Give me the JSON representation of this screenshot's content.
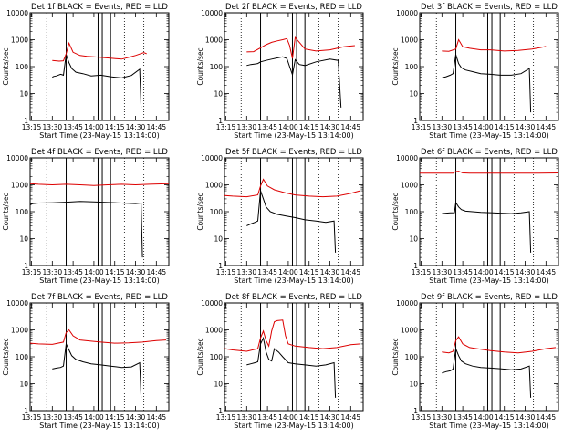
{
  "figure": {
    "xlabel": "Start Time (23-May-15 13:14:00)",
    "ylabel": "Counts/sec",
    "x_tick_labels": [
      "13:15",
      "13:30",
      "13:45",
      "14:00",
      "14:15",
      "14:30",
      "14:45"
    ],
    "colors": {
      "events": "#000000",
      "lld": "#dd0000",
      "frame": "#000000"
    }
  },
  "chart_data": [
    {
      "type": "line",
      "panel": 1,
      "title": "Det 1f BLACK = Events, RED = LLD",
      "xlabel": "Start Time (23-May-15 13:14:00)",
      "ylabel": "Counts/sec",
      "xlim": [
        "13:14",
        "14:54"
      ],
      "ylim": [
        1,
        10000
      ],
      "yscale": "log",
      "y_tick_labels": [
        "1",
        "10",
        "100",
        "1000",
        "10000"
      ],
      "vertical_lines_solid": [
        "13:40",
        "14:03",
        "14:06",
        "14:12"
      ],
      "vertical_lines_dotted": [
        "13:26",
        "14:22",
        "14:36"
      ],
      "series": [
        {
          "name": "Events",
          "x": [
            "13:30",
            "13:31",
            "13:33",
            "13:36",
            "13:37",
            "13:38",
            "13:40",
            "13:42",
            "13:44",
            "13:47",
            "13:52",
            "13:58",
            "14:05",
            "14:12",
            "14:20",
            "14:27",
            "14:33",
            "14:34"
          ],
          "y": [
            40,
            43,
            45,
            52,
            50,
            48,
            280,
            140,
            85,
            62,
            55,
            45,
            48,
            42,
            38,
            47,
            80,
            3
          ]
        },
        {
          "name": "LLD",
          "x": [
            "13:30",
            "13:35",
            "13:38",
            "13:40",
            "13:42",
            "13:45",
            "13:50",
            "13:55",
            "14:00",
            "14:10",
            "14:20",
            "14:25",
            "14:30",
            "14:36",
            "14:38"
          ],
          "y": [
            170,
            160,
            165,
            300,
            750,
            340,
            260,
            240,
            230,
            210,
            190,
            220,
            260,
            330,
            300
          ]
        }
      ]
    },
    {
      "type": "line",
      "panel": 2,
      "title": "Det 2f BLACK = Events, RED = LLD",
      "xlabel": "Start Time (23-May-15 13:14:00)",
      "ylabel": "Counts/sec",
      "xlim": [
        "13:14",
        "14:54"
      ],
      "ylim": [
        1,
        10000
      ],
      "yscale": "log",
      "y_tick_labels": [
        "1",
        "10",
        "100",
        "1000",
        "10000"
      ],
      "vertical_lines_solid": [
        "13:40",
        "14:03",
        "14:06",
        "14:12"
      ],
      "vertical_lines_dotted": [
        "13:26",
        "14:22",
        "14:36"
      ],
      "series": [
        {
          "name": "Events",
          "x": [
            "13:30",
            "13:33",
            "13:36",
            "13:38",
            "13:40",
            "13:44",
            "13:48",
            "13:52",
            "13:56",
            "13:59",
            "14:01",
            "14:03",
            "14:05",
            "14:08",
            "14:12",
            "14:20",
            "14:30",
            "14:36",
            "14:38"
          ],
          "y": [
            110,
            120,
            125,
            130,
            150,
            170,
            190,
            210,
            230,
            200,
            100,
            50,
            180,
            120,
            110,
            150,
            190,
            170,
            3
          ]
        },
        {
          "name": "LLD",
          "x": [
            "13:30",
            "13:35",
            "13:40",
            "13:44",
            "13:48",
            "13:52",
            "13:56",
            "13:59",
            "14:01",
            "14:03",
            "14:05",
            "14:08",
            "14:12",
            "14:20",
            "14:30",
            "14:40",
            "14:48"
          ],
          "y": [
            350,
            360,
            500,
            650,
            800,
            900,
            1000,
            1100,
            600,
            200,
            1200,
            800,
            450,
            380,
            420,
            550,
            600
          ]
        }
      ]
    },
    {
      "type": "line",
      "panel": 3,
      "title": "Det 3f BLACK = Events, RED = LLD",
      "xlabel": "Start Time (23-May-15 13:14:00)",
      "ylabel": "Counts/sec",
      "xlim": [
        "13:14",
        "14:54"
      ],
      "ylim": [
        1,
        10000
      ],
      "yscale": "log",
      "y_tick_labels": [
        "1",
        "10",
        "100",
        "1000",
        "10000"
      ],
      "vertical_lines_solid": [
        "13:40",
        "14:03",
        "14:06",
        "14:12"
      ],
      "vertical_lines_dotted": [
        "13:26",
        "14:22",
        "14:36"
      ],
      "series": [
        {
          "name": "Events",
          "x": [
            "13:30",
            "13:33",
            "13:36",
            "13:38",
            "13:40",
            "13:42",
            "13:44",
            "13:47",
            "13:52",
            "13:58",
            "14:05",
            "14:12",
            "14:20",
            "14:27",
            "14:33",
            "14:34"
          ],
          "y": [
            38,
            42,
            48,
            55,
            280,
            130,
            90,
            75,
            65,
            55,
            52,
            48,
            48,
            55,
            85,
            2
          ]
        },
        {
          "name": "LLD",
          "x": [
            "13:30",
            "13:35",
            "13:40",
            "13:42",
            "13:45",
            "13:50",
            "13:58",
            "14:05",
            "14:15",
            "14:25",
            "14:35",
            "14:40",
            "14:45"
          ],
          "y": [
            380,
            370,
            450,
            1000,
            550,
            480,
            420,
            420,
            380,
            400,
            450,
            500,
            560
          ]
        }
      ]
    },
    {
      "type": "line",
      "panel": 4,
      "title": "Det 4f BLACK = Events, RED = LLD",
      "xlabel": "Start Time (23-May-15 13:14:00)",
      "ylabel": "Counts/sec",
      "xlim": [
        "13:14",
        "14:54"
      ],
      "ylim": [
        1,
        10000
      ],
      "yscale": "log",
      "y_tick_labels": [
        "1",
        "10",
        "100",
        "1000",
        "10000"
      ],
      "vertical_lines_solid": [
        "13:40",
        "14:03",
        "14:06",
        "14:12"
      ],
      "vertical_lines_dotted": [
        "13:26",
        "14:22",
        "14:36"
      ],
      "series": [
        {
          "name": "Events",
          "x": [
            "13:14",
            "13:16",
            "13:20",
            "13:30",
            "13:40",
            "13:50",
            "14:00",
            "14:10",
            "14:20",
            "14:30",
            "14:34",
            "14:35"
          ],
          "y": [
            180,
            200,
            210,
            215,
            225,
            240,
            230,
            220,
            210,
            200,
            210,
            2
          ]
        },
        {
          "name": "LLD",
          "x": [
            "13:14",
            "13:20",
            "13:30",
            "13:40",
            "13:50",
            "14:00",
            "14:10",
            "14:20",
            "14:30",
            "14:40",
            "14:54"
          ],
          "y": [
            1100,
            1050,
            1000,
            1050,
            1000,
            950,
            1000,
            1050,
            1000,
            1050,
            1100
          ]
        }
      ]
    },
    {
      "type": "line",
      "panel": 5,
      "title": "Det 5f BLACK = Events, RED = LLD",
      "xlabel": "Start Time (23-May-15 13:14:00)",
      "ylabel": "Counts/sec",
      "xlim": [
        "13:14",
        "14:54"
      ],
      "ylim": [
        1,
        10000
      ],
      "yscale": "log",
      "y_tick_labels": [
        "1",
        "10",
        "100",
        "1000",
        "10000"
      ],
      "vertical_lines_solid": [
        "13:40",
        "14:03",
        "14:06",
        "14:12"
      ],
      "vertical_lines_dotted": [
        "13:26",
        "14:22",
        "14:36"
      ],
      "series": [
        {
          "name": "Events",
          "x": [
            "13:30",
            "13:33",
            "13:36",
            "13:38",
            "13:40",
            "13:42",
            "13:44",
            "13:47",
            "13:52",
            "13:58",
            "14:05",
            "14:12",
            "14:20",
            "14:27",
            "14:33",
            "14:34"
          ],
          "y": [
            30,
            35,
            40,
            45,
            600,
            300,
            150,
            100,
            80,
            70,
            60,
            50,
            45,
            40,
            45,
            3
          ]
        },
        {
          "name": "LLD",
          "x": [
            "13:14",
            "13:20",
            "13:30",
            "13:38",
            "13:40",
            "13:42",
            "13:45",
            "13:50",
            "13:58",
            "14:05",
            "14:15",
            "14:25",
            "14:35",
            "14:45",
            "14:52"
          ],
          "y": [
            400,
            380,
            360,
            420,
            900,
            1600,
            900,
            650,
            500,
            420,
            380,
            360,
            380,
            480,
            600
          ]
        }
      ]
    },
    {
      "type": "line",
      "panel": 6,
      "title": "Det 6f BLACK = Events, RED = LLD",
      "xlabel": "Start Time (23-May-15 13:14:00)",
      "ylabel": "Counts/sec",
      "xlim": [
        "13:14",
        "14:54"
      ],
      "ylim": [
        1,
        10000
      ],
      "yscale": "log",
      "y_tick_labels": [
        "1",
        "10",
        "100",
        "1000",
        "10000"
      ],
      "vertical_lines_solid": [
        "13:40",
        "14:03",
        "14:06",
        "14:12"
      ],
      "vertical_lines_dotted": [
        "13:26",
        "14:22",
        "14:36"
      ],
      "series": [
        {
          "name": "Events",
          "x": [
            "13:30",
            "13:33",
            "13:36",
            "13:39",
            "13:40",
            "13:42",
            "13:44",
            "13:47",
            "13:52",
            "13:58",
            "14:05",
            "14:12",
            "14:20",
            "14:27",
            "14:33",
            "14:34"
          ],
          "y": [
            85,
            88,
            90,
            92,
            220,
            150,
            120,
            105,
            100,
            95,
            92,
            88,
            85,
            90,
            100,
            3
          ]
        },
        {
          "name": "LLD",
          "x": [
            "13:14",
            "13:30",
            "13:38",
            "13:40",
            "13:42",
            "13:45",
            "13:50",
            "14:00",
            "14:20",
            "14:40",
            "14:54"
          ],
          "y": [
            2700,
            2700,
            2700,
            3100,
            3200,
            2750,
            2700,
            2700,
            2700,
            2700,
            2750
          ]
        }
      ]
    },
    {
      "type": "line",
      "panel": 7,
      "title": "Det 7f BLACK = Events, RED = LLD",
      "xlabel": "Start Time (23-May-15 13:14:00)",
      "ylabel": "Counts/sec",
      "xlim": [
        "13:14",
        "14:54"
      ],
      "ylim": [
        1,
        10000
      ],
      "yscale": "log",
      "y_tick_labels": [
        "1",
        "10",
        "100",
        "1000",
        "10000"
      ],
      "vertical_lines_solid": [
        "13:40",
        "14:03",
        "14:06",
        "14:12"
      ],
      "vertical_lines_dotted": [
        "13:26",
        "14:22",
        "14:36"
      ],
      "series": [
        {
          "name": "Events",
          "x": [
            "13:30",
            "13:33",
            "13:36",
            "13:38",
            "13:40",
            "13:42",
            "13:44",
            "13:47",
            "13:52",
            "13:58",
            "14:05",
            "14:12",
            "14:20",
            "14:27",
            "14:33",
            "14:34"
          ],
          "y": [
            35,
            38,
            40,
            45,
            300,
            180,
            110,
            80,
            65,
            55,
            50,
            45,
            40,
            42,
            60,
            3
          ]
        },
        {
          "name": "LLD",
          "x": [
            "13:14",
            "13:20",
            "13:30",
            "13:38",
            "13:40",
            "13:42",
            "13:45",
            "13:50",
            "13:58",
            "14:05",
            "14:15",
            "14:25",
            "14:35",
            "14:45",
            "14:52"
          ],
          "y": [
            320,
            300,
            290,
            350,
            800,
            1000,
            600,
            420,
            380,
            350,
            320,
            330,
            350,
            400,
            420
          ]
        }
      ]
    },
    {
      "type": "line",
      "panel": 8,
      "title": "Det 8f BLACK = Events, RED = LLD",
      "xlabel": "Start Time (23-May-15 13:14:00)",
      "ylabel": "Counts/sec",
      "xlim": [
        "13:14",
        "14:54"
      ],
      "ylim": [
        1,
        10000
      ],
      "yscale": "log",
      "y_tick_labels": [
        "1",
        "10",
        "100",
        "1000",
        "10000"
      ],
      "vertical_lines_solid": [
        "13:40",
        "14:03",
        "14:06",
        "14:12"
      ],
      "vertical_lines_dotted": [
        "13:26",
        "14:22",
        "14:36"
      ],
      "series": [
        {
          "name": "Events",
          "x": [
            "13:30",
            "13:33",
            "13:36",
            "13:38",
            "13:40",
            "13:42",
            "13:44",
            "13:46",
            "13:48",
            "13:50",
            "13:53",
            "13:56",
            "14:00",
            "14:05",
            "14:12",
            "14:20",
            "14:27",
            "14:33",
            "14:34"
          ],
          "y": [
            50,
            55,
            60,
            65,
            300,
            500,
            150,
            80,
            70,
            200,
            150,
            100,
            60,
            55,
            50,
            45,
            50,
            60,
            3
          ]
        },
        {
          "name": "LLD",
          "x": [
            "13:14",
            "13:20",
            "13:30",
            "13:38",
            "13:40",
            "13:42",
            "13:44",
            "13:46",
            "13:48",
            "13:50",
            "13:52",
            "13:56",
            "13:58",
            "14:00",
            "14:05",
            "14:15",
            "14:25",
            "14:35",
            "14:45",
            "14:52"
          ],
          "y": [
            200,
            180,
            160,
            200,
            500,
            900,
            400,
            250,
            900,
            2000,
            2200,
            2300,
            600,
            300,
            250,
            220,
            200,
            220,
            280,
            300
          ]
        }
      ]
    },
    {
      "type": "line",
      "panel": 9,
      "title": "Det 9f BLACK = Events, RED = LLD",
      "xlabel": "Start Time (23-May-15 13:14:00)",
      "ylabel": "Counts/sec",
      "xlim": [
        "13:14",
        "14:54"
      ],
      "ylim": [
        1,
        10000
      ],
      "yscale": "log",
      "y_tick_labels": [
        "1",
        "10",
        "100",
        "1000",
        "10000"
      ],
      "vertical_lines_solid": [
        "13:40",
        "14:03",
        "14:06",
        "14:12"
      ],
      "vertical_lines_dotted": [
        "13:26",
        "14:22",
        "14:36"
      ],
      "series": [
        {
          "name": "Events",
          "x": [
            "13:30",
            "13:33",
            "13:36",
            "13:38",
            "13:40",
            "13:42",
            "13:44",
            "13:47",
            "13:52",
            "13:58",
            "14:05",
            "14:12",
            "14:20",
            "14:27",
            "14:33",
            "14:34"
          ],
          "y": [
            25,
            28,
            30,
            35,
            200,
            110,
            70,
            55,
            45,
            40,
            38,
            36,
            33,
            35,
            45,
            3
          ]
        },
        {
          "name": "LLD",
          "x": [
            "13:30",
            "13:35",
            "13:38",
            "13:40",
            "13:42",
            "13:45",
            "13:50",
            "13:58",
            "14:05",
            "14:15",
            "14:25",
            "14:35",
            "14:45",
            "14:52"
          ],
          "y": [
            150,
            140,
            160,
            400,
            550,
            300,
            220,
            190,
            170,
            150,
            140,
            160,
            200,
            220
          ]
        }
      ]
    }
  ]
}
